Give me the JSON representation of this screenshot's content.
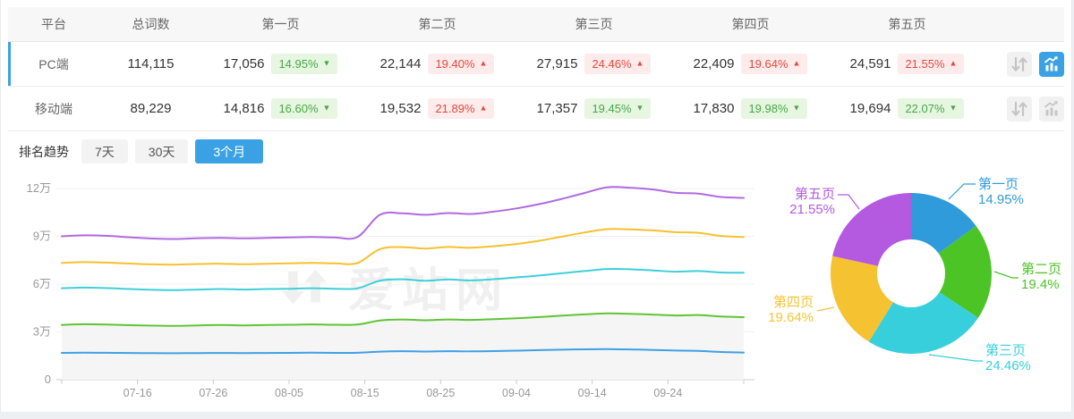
{
  "table": {
    "columns": [
      "平台",
      "总词数",
      "第一页",
      "第二页",
      "第三页",
      "第四页",
      "第五页",
      ""
    ],
    "rows": [
      {
        "platform": "PC端",
        "total": "114,115",
        "active": true,
        "pages": [
          {
            "value": "17,056",
            "pct": "14.95%",
            "dir": "down"
          },
          {
            "value": "22,144",
            "pct": "19.40%",
            "dir": "up"
          },
          {
            "value": "27,915",
            "pct": "24.46%",
            "dir": "up"
          },
          {
            "value": "22,409",
            "pct": "19.64%",
            "dir": "up"
          },
          {
            "value": "24,591",
            "pct": "21.55%",
            "dir": "up"
          }
        ]
      },
      {
        "platform": "移动端",
        "total": "89,229",
        "active": false,
        "pages": [
          {
            "value": "14,816",
            "pct": "16.60%",
            "dir": "down"
          },
          {
            "value": "19,532",
            "pct": "21.89%",
            "dir": "up"
          },
          {
            "value": "17,357",
            "pct": "19.45%",
            "dir": "down"
          },
          {
            "value": "17,830",
            "pct": "19.98%",
            "dir": "down"
          },
          {
            "value": "19,694",
            "pct": "22.07%",
            "dir": "down"
          }
        ]
      }
    ]
  },
  "trend": {
    "label": "排名趋势",
    "ranges": [
      {
        "label": "7天",
        "active": false
      },
      {
        "label": "30天",
        "active": false
      },
      {
        "label": "3个月",
        "active": true
      }
    ]
  },
  "watermark": {
    "text": "爱站网"
  },
  "colors": {
    "accent_blue": "#3aa2e4",
    "badge_up_text": "#e6483d",
    "badge_up_bg": "#fdeceb",
    "badge_down_text": "#47a847",
    "badge_down_bg": "#e7f6e1"
  },
  "chart_data": [
    {
      "type": "line",
      "title": "排名趋势（3个月，PC端，累计收录词数）",
      "stacked_cumulative": true,
      "grid": true,
      "legend_position": "none",
      "ylabel": "",
      "ylim": [
        0,
        120000
      ],
      "y_ticks": [
        "0",
        "3万",
        "6万",
        "9万",
        "12万"
      ],
      "x_total_days": 90,
      "x_tick_labels": [
        "07-16",
        "07-26",
        "08-05",
        "08-15",
        "08-25",
        "09-04",
        "09-14",
        "09-24"
      ],
      "x_tick_days": [
        10,
        20,
        30,
        40,
        50,
        60,
        70,
        80
      ],
      "sample_day_offsets": [
        0,
        3,
        6,
        9,
        12,
        15,
        18,
        21,
        24,
        27,
        30,
        33,
        36,
        39,
        42,
        45,
        48,
        51,
        54,
        57,
        60,
        63,
        66,
        69,
        72,
        75,
        78,
        81,
        84,
        87,
        90
      ],
      "series": [
        {
          "name": "第一页",
          "color": "#3fa0e4",
          "values": [
            16800,
            16950,
            16870,
            16750,
            16650,
            16620,
            16700,
            16780,
            16700,
            16780,
            16850,
            16920,
            16850,
            16900,
            17600,
            17900,
            17650,
            17900,
            17750,
            17950,
            18200,
            18550,
            18850,
            19050,
            19150,
            19000,
            18700,
            18300,
            18100,
            17400,
            17056
          ]
        },
        {
          "name": "第二页(累计)",
          "color": "#62c436",
          "area_fill": "#f5f5f5",
          "values": [
            34400,
            34800,
            34600,
            34200,
            33900,
            33800,
            34100,
            34300,
            34100,
            34300,
            34500,
            34700,
            34500,
            34600,
            37200,
            37800,
            37300,
            37800,
            37500,
            38000,
            38600,
            39300,
            40200,
            41000,
            41600,
            41400,
            40900,
            40300,
            40600,
            39700,
            39200
          ]
        },
        {
          "name": "第三页(累计)",
          "color": "#3ecfdb",
          "values": [
            57400,
            57800,
            57500,
            56900,
            56400,
            56200,
            56600,
            56900,
            56600,
            56900,
            57100,
            57400,
            57100,
            57300,
            62200,
            63000,
            62100,
            62900,
            62300,
            63100,
            64200,
            65400,
            66800,
            68200,
            69500,
            69300,
            68600,
            67800,
            68200,
            67300,
            67115
          ]
        },
        {
          "name": "第四页(累计)",
          "color": "#f6c12f",
          "values": [
            73300,
            73800,
            73500,
            72900,
            72400,
            72200,
            72600,
            72800,
            72500,
            72800,
            73000,
            73300,
            73000,
            73200,
            82000,
            83200,
            82300,
            83300,
            82800,
            83800,
            85200,
            87200,
            89800,
            92400,
            94500,
            94300,
            93700,
            92600,
            92200,
            90200,
            89524
          ]
        },
        {
          "name": "第五页(累计/总词数)",
          "color": "#b06be0",
          "values": [
            90000,
            90600,
            90300,
            89400,
            88600,
            88300,
            88800,
            89000,
            88700,
            89000,
            89300,
            89600,
            89300,
            89500,
            103500,
            104400,
            103500,
            104600,
            104000,
            105500,
            107500,
            110200,
            113500,
            117200,
            120800,
            120500,
            119400,
            117300,
            116800,
            114700,
            114115
          ]
        }
      ]
    },
    {
      "type": "pie",
      "title": "各页占比（PC端）",
      "donut": true,
      "slices": [
        {
          "label": "第一页",
          "pct_text": "14.95%",
          "pct": 14.95,
          "color": "#2f9bdb"
        },
        {
          "label": "第二页",
          "pct_text": "19.4%",
          "pct": 19.4,
          "color": "#4cc425"
        },
        {
          "label": "第三页",
          "pct_text": "24.46%",
          "pct": 24.46,
          "color": "#38cfdc"
        },
        {
          "label": "第四页",
          "pct_text": "19.64%",
          "pct": 19.64,
          "color": "#f5c331"
        },
        {
          "label": "第五页",
          "pct_text": "21.55%",
          "pct": 21.55,
          "color": "#b35ae0"
        }
      ]
    }
  ]
}
